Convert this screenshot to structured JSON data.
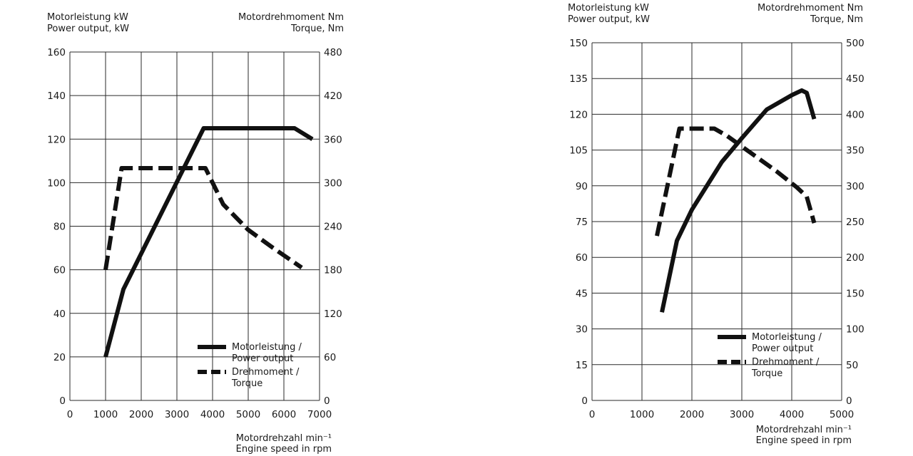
{
  "chart_data": [
    {
      "type": "line",
      "x_label": [
        "Motordrehzahl min⁻¹",
        "Engine speed in rpm"
      ],
      "y_left_label": [
        "Motorleistung kW",
        "Power output, kW"
      ],
      "y_right_label": [
        "Motordrehmoment Nm",
        "Torque, Nm"
      ],
      "xlim": [
        0,
        7000
      ],
      "ylim_left": [
        0,
        160
      ],
      "ylim_right": [
        0,
        480
      ],
      "x_ticks": [
        "0",
        "1000",
        "2000",
        "3000",
        "4000",
        "5000",
        "6000",
        "7000"
      ],
      "y_left_ticks": [
        "0",
        "20",
        "40",
        "60",
        "80",
        "100",
        "120",
        "140",
        "160"
      ],
      "y_right_ticks": [
        "0",
        "60",
        "120",
        "180",
        "240",
        "300",
        "360",
        "420",
        "480"
      ],
      "grid": true,
      "legend_position": "bottom-right",
      "series": [
        {
          "name": "Motorleistung / Power output",
          "legend_lines": [
            "Motorleistung /",
            "Power output"
          ],
          "axis": "left",
          "style": "solid",
          "points": [
            [
              1000,
              20
            ],
            [
              1500,
              51
            ],
            [
              3750,
              125
            ],
            [
              6300,
              125
            ],
            [
              6800,
              120
            ]
          ]
        },
        {
          "name": "Drehmoment / Torque",
          "legend_lines": [
            "Drehmoment /",
            "Torque"
          ],
          "axis": "right",
          "style": "dashed",
          "points": [
            [
              1000,
              180
            ],
            [
              1450,
              320
            ],
            [
              3800,
              320
            ],
            [
              4300,
              270
            ],
            [
              5000,
              235
            ],
            [
              5700,
              210
            ],
            [
              6500,
              183
            ]
          ]
        }
      ]
    },
    {
      "type": "line",
      "x_label": [
        "Motordrehzahl min⁻¹",
        "Engine speed in rpm"
      ],
      "y_left_label": [
        "Motorleistung kW",
        "Power output, kW"
      ],
      "y_right_label": [
        "Motordrehmoment Nm",
        "Torque, Nm"
      ],
      "xlim": [
        0,
        5000
      ],
      "ylim_left": [
        0,
        150
      ],
      "ylim_right": [
        0,
        500
      ],
      "x_ticks": [
        "0",
        "1000",
        "2000",
        "3000",
        "4000",
        "5000"
      ],
      "y_left_ticks": [
        "0",
        "15",
        "30",
        "45",
        "60",
        "75",
        "90",
        "105",
        "120",
        "135",
        "150"
      ],
      "y_right_ticks": [
        "0",
        "50",
        "100",
        "150",
        "200",
        "250",
        "300",
        "350",
        "400",
        "450",
        "500"
      ],
      "grid": true,
      "legend_position": "bottom-right",
      "series": [
        {
          "name": "Motorleistung / Power output",
          "legend_lines": [
            "Motorleistung /",
            "Power output"
          ],
          "axis": "left",
          "style": "solid",
          "points": [
            [
              1400,
              37
            ],
            [
              1700,
              67
            ],
            [
              2000,
              80
            ],
            [
              2600,
              100
            ],
            [
              3000,
              110
            ],
            [
              3500,
              122
            ],
            [
              4000,
              128
            ],
            [
              4200,
              130
            ],
            [
              4300,
              129
            ],
            [
              4450,
              118
            ]
          ]
        },
        {
          "name": "Drehmoment / Torque",
          "legend_lines": [
            "Drehmoment /",
            "Torque"
          ],
          "axis": "right",
          "style": "dashed",
          "points": [
            [
              1300,
              230
            ],
            [
              1750,
              380
            ],
            [
              2450,
              380
            ],
            [
              2700,
              370
            ],
            [
              3200,
              345
            ],
            [
              3700,
              320
            ],
            [
              4100,
              298
            ],
            [
              4300,
              285
            ],
            [
              4450,
              248
            ]
          ]
        }
      ]
    }
  ]
}
